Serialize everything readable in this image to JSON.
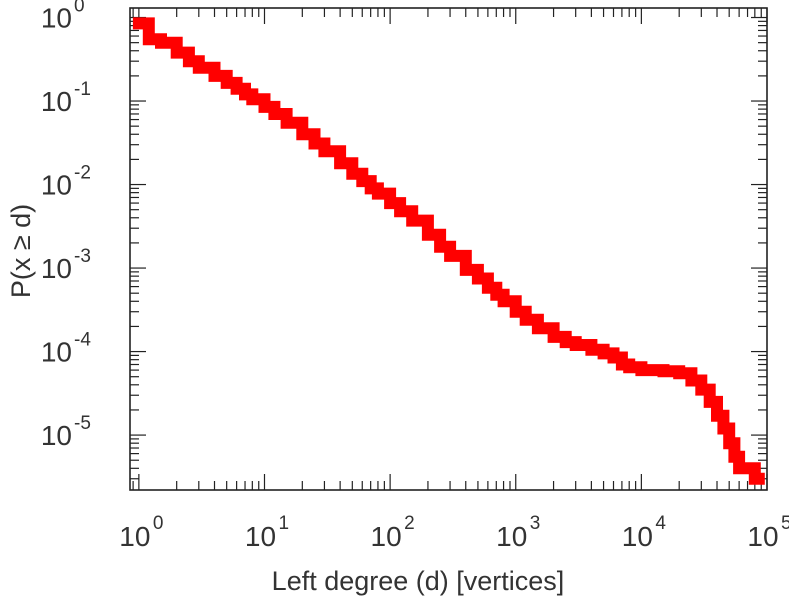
{
  "chart_data": {
    "type": "line",
    "title": "",
    "xlabel": "Left degree (d) [vertices]",
    "ylabel": "P(x ≥ d)",
    "x_scale": "log",
    "y_scale": "log",
    "xlim": [
      0.85,
      100000
    ],
    "ylim": [
      2.2e-06,
      1.3
    ],
    "grid": false,
    "legend": "none",
    "x_ticks": [
      {
        "base": "10",
        "exp": "0",
        "value": 1
      },
      {
        "base": "10",
        "exp": "1",
        "value": 10
      },
      {
        "base": "10",
        "exp": "2",
        "value": 100
      },
      {
        "base": "10",
        "exp": "3",
        "value": 1000
      },
      {
        "base": "10",
        "exp": "4",
        "value": 10000
      },
      {
        "base": "10",
        "exp": "5",
        "value": 100000
      }
    ],
    "y_ticks": [
      {
        "base": "10",
        "exp": "0",
        "value": 1
      },
      {
        "base": "10",
        "exp": "-1",
        "value": 0.1
      },
      {
        "base": "10",
        "exp": "-2",
        "value": 0.01
      },
      {
        "base": "10",
        "exp": "-3",
        "value": 0.001
      },
      {
        "base": "10",
        "exp": "-4",
        "value": 0.0001
      },
      {
        "base": "10",
        "exp": "-5",
        "value": 1e-05
      }
    ],
    "series": [
      {
        "color": "#ff0000",
        "x": [
          1,
          1.2,
          1.5,
          2,
          2.5,
          3,
          4,
          5,
          6,
          7,
          8,
          10,
          12,
          15,
          20,
          25,
          30,
          40,
          50,
          60,
          70,
          80,
          100,
          120,
          150,
          200,
          250,
          300,
          400,
          500,
          600,
          700,
          800,
          1000,
          1200,
          1500,
          2000,
          2500,
          3000,
          4000,
          5000,
          6000,
          7000,
          8000,
          10000,
          12000,
          15000,
          20000,
          25000,
          30000,
          35000,
          40000,
          45000,
          50000,
          55000,
          60000,
          80000
        ],
        "y": [
          0.85,
          0.55,
          0.5,
          0.38,
          0.3,
          0.25,
          0.2,
          0.165,
          0.14,
          0.12,
          0.105,
          0.085,
          0.07,
          0.055,
          0.04,
          0.031,
          0.025,
          0.018,
          0.0135,
          0.011,
          0.009,
          0.0078,
          0.006,
          0.0048,
          0.0037,
          0.0025,
          0.0018,
          0.0014,
          0.00095,
          0.00075,
          0.00058,
          0.00048,
          0.0004,
          0.0003,
          0.00024,
          0.00019,
          0.00015,
          0.00013,
          0.00012,
          0.000105,
          9.5e-05,
          8.5e-05,
          7e-05,
          6.5e-05,
          6e-05,
          6e-05,
          5.8e-05,
          5.5e-05,
          4.5e-05,
          3.5e-05,
          2.5e-05,
          1.7e-05,
          1.2e-05,
          8e-06,
          5.5e-06,
          4e-06,
          3e-06
        ]
      }
    ]
  }
}
